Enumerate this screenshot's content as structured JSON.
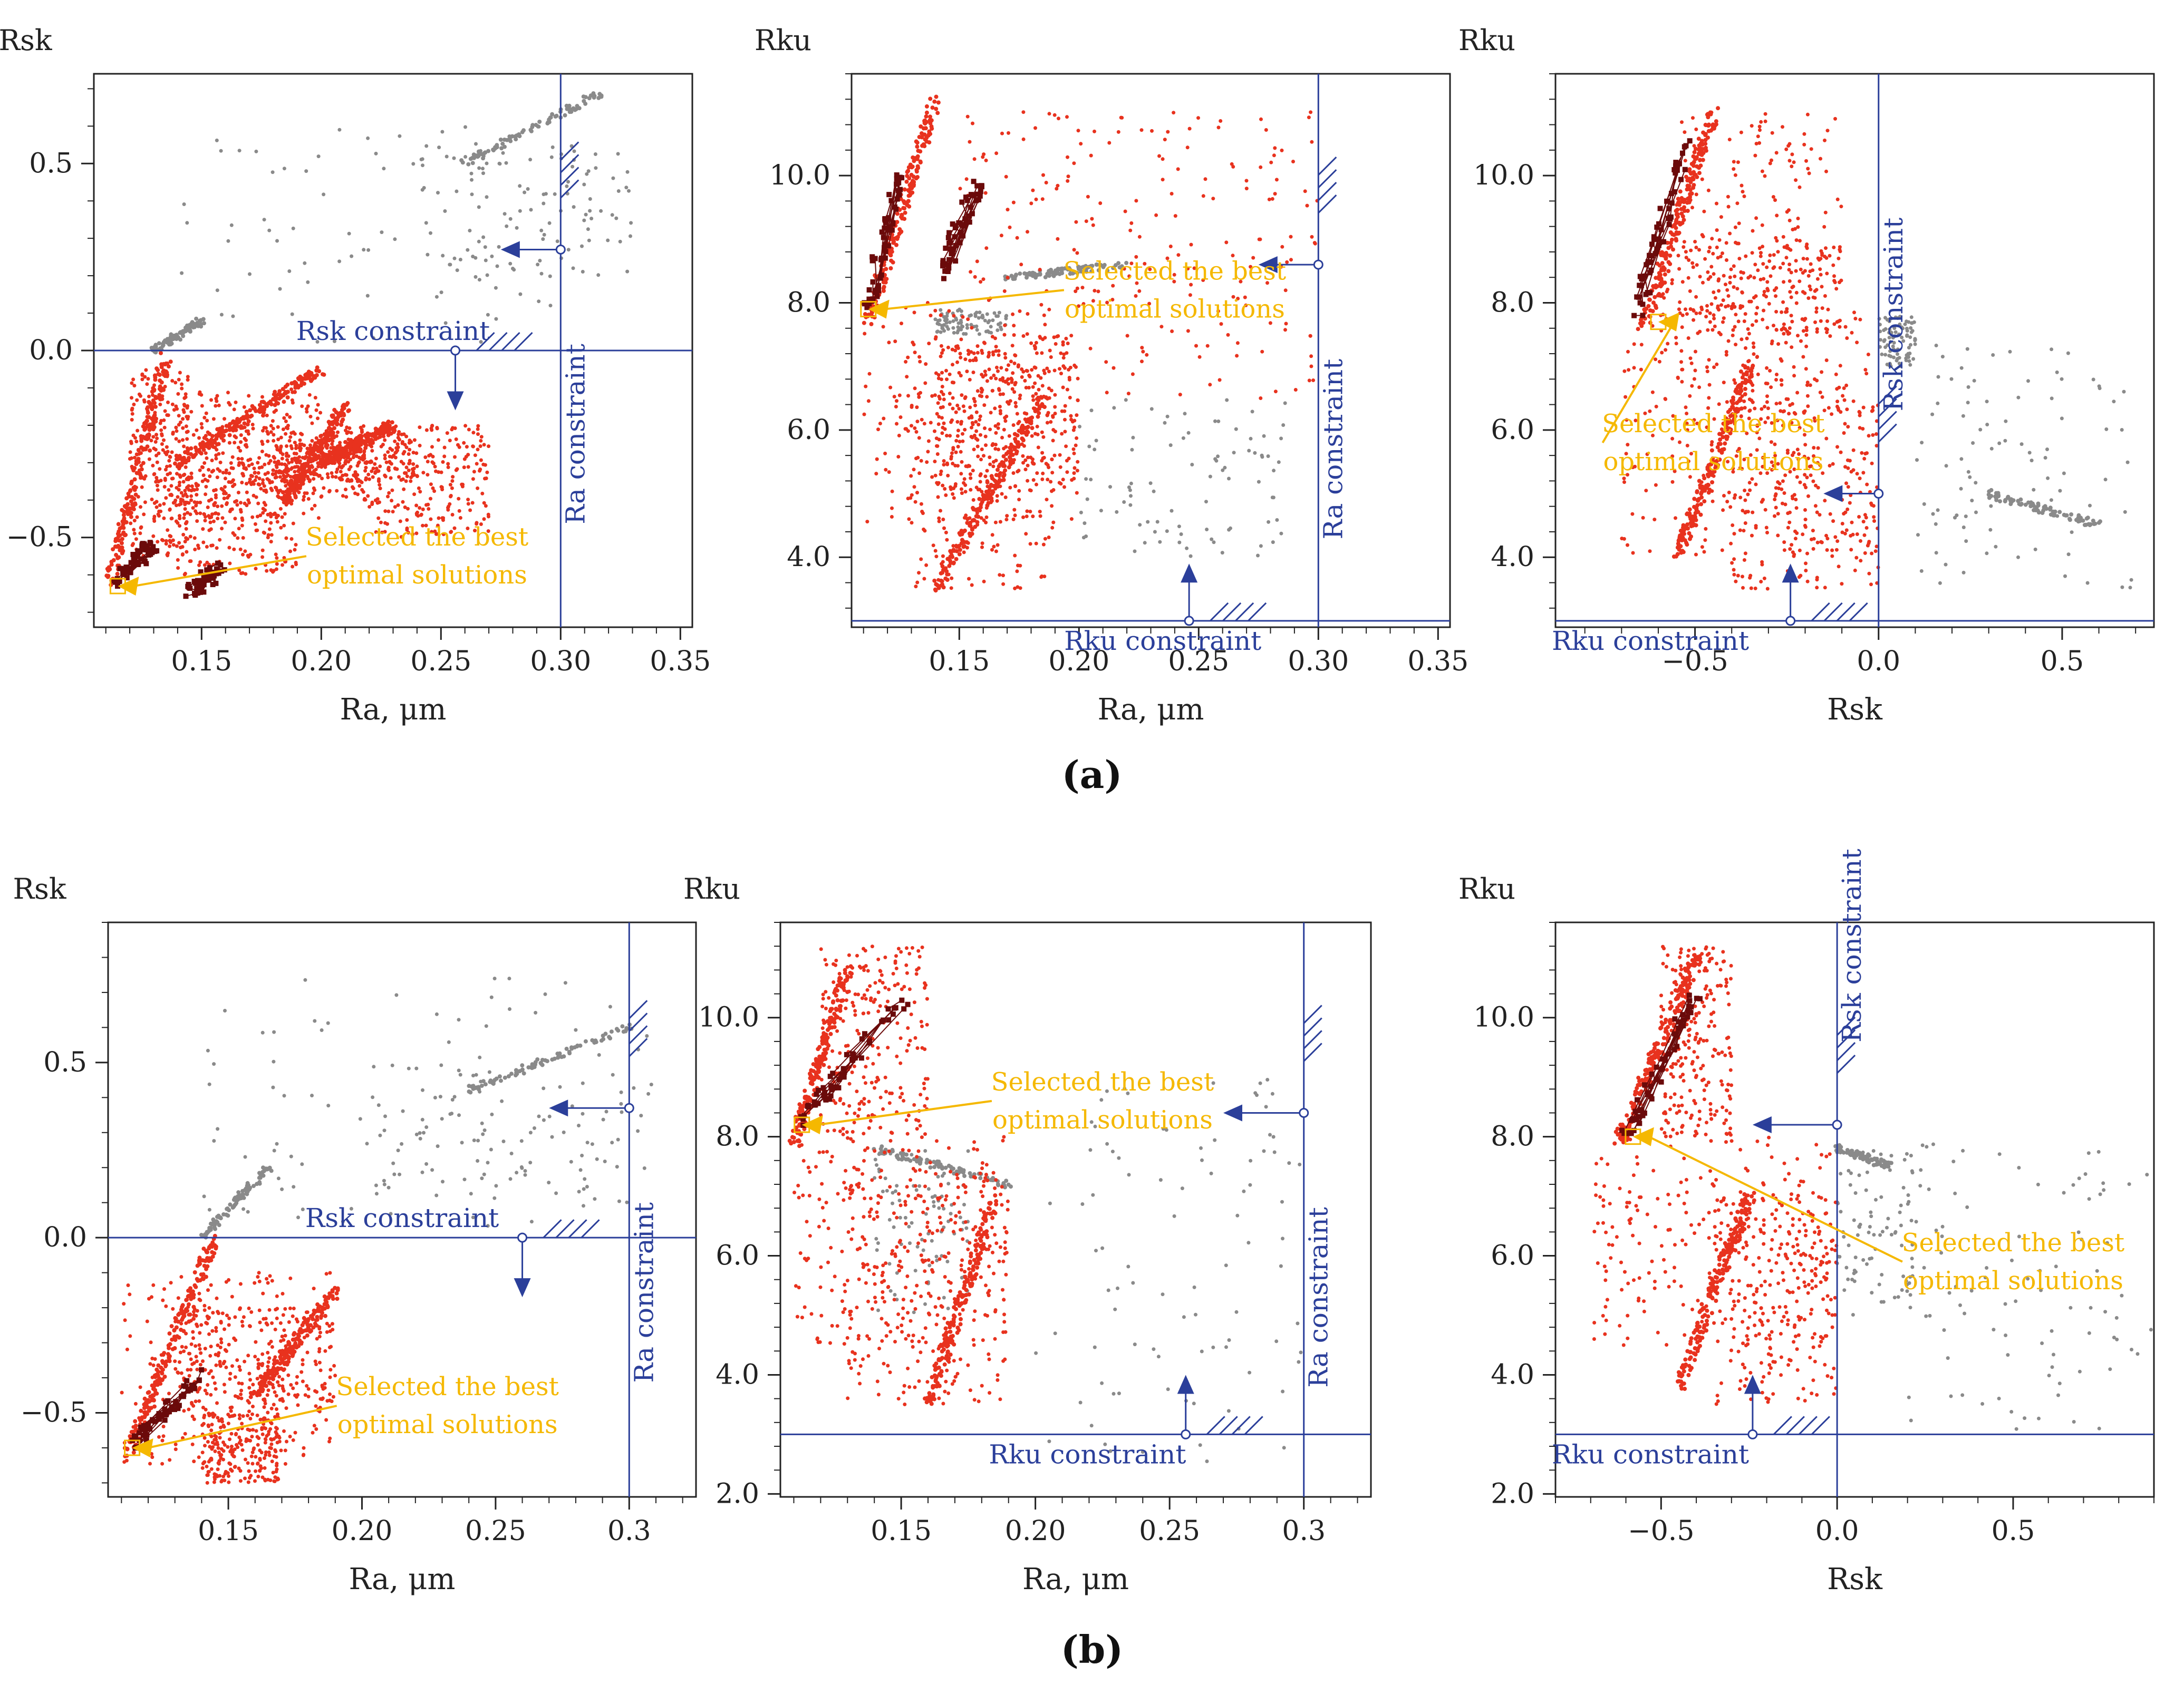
{
  "figure": {
    "panel_labels": [
      "(a)",
      "(b)"
    ]
  },
  "colors": {
    "constraint": "#2B3F9A",
    "constraint_text": "#2B3F9A",
    "feasible": "#E8321E",
    "infeasible": "#8A8A8A",
    "pareto": "#6B0A0A",
    "annotation": "#F5B800",
    "axis": "#222222"
  },
  "chart_data": [
    {
      "id": "a1",
      "type": "scatter",
      "row": "(a)",
      "ylabel": "Rsk",
      "xlabel": "Ra, μm",
      "xlim": [
        0.105,
        0.355
      ],
      "ylim": [
        -0.74,
        0.74
      ],
      "xticks": [
        0.15,
        0.2,
        0.25,
        0.3,
        0.35
      ],
      "xtick_labels": [
        "0.15",
        "0.20",
        "0.25",
        "0.30",
        "0.35"
      ],
      "yticks": [
        -0.5,
        0.0,
        0.5
      ],
      "ytick_labels": [
        "−0.5",
        "0.0",
        "0.5"
      ],
      "constraints": [
        {
          "axis": "x",
          "value": 0.3,
          "label": "Ra constraint",
          "marker_y": 0.27,
          "arrow_to": 0.275
        },
        {
          "axis": "y",
          "value": 0.0,
          "label": "Rsk constraint",
          "marker_x": 0.256,
          "arrow_to": -0.16
        }
      ],
      "annotation": {
        "line1": "Selected the best",
        "line2": "optimal solutions",
        "target": [
          0.115,
          -0.63
        ],
        "text_at": [
          0.24,
          -0.55
        ]
      },
      "series": {
        "feasible": [
          [
            0.12,
            -0.55,
            0.145,
            -0.05
          ],
          [
            0.13,
            -0.45,
            0.2,
            -0.1
          ],
          [
            0.14,
            -0.6,
            0.19,
            -0.3
          ],
          [
            0.15,
            -0.4,
            0.22,
            -0.2
          ],
          [
            0.18,
            -0.35,
            0.24,
            -0.25
          ],
          [
            0.22,
            -0.5,
            0.27,
            -0.2
          ]
        ],
        "feasible_arcs": [
          [
            0.112,
            -0.62,
            0.135,
            -0.02
          ],
          [
            0.14,
            -0.3,
            0.2,
            -0.05
          ],
          [
            0.185,
            -0.4,
            0.21,
            -0.15
          ],
          [
            0.2,
            -0.3,
            0.23,
            -0.2
          ]
        ],
        "infeasible": [
          [
            0.14,
            0.02,
            0.33,
            0.6
          ],
          [
            0.24,
            0.2,
            0.33,
            0.55
          ]
        ],
        "infeasible_arcs": [
          [
            0.13,
            0.0,
            0.15,
            0.08
          ],
          [
            0.26,
            0.5,
            0.32,
            0.7
          ]
        ],
        "pareto": [
          [
            0.112,
            -0.63,
            0.13,
            -0.52
          ],
          [
            0.145,
            -0.65,
            0.158,
            -0.58
          ]
        ]
      }
    },
    {
      "id": "a2",
      "type": "scatter",
      "row": "(a)",
      "ylabel": "Rku",
      "xlabel": "Ra, μm",
      "xlim": [
        0.105,
        0.355
      ],
      "ylim": [
        2.9,
        11.6
      ],
      "xticks": [
        0.15,
        0.2,
        0.25,
        0.3,
        0.35
      ],
      "xtick_labels": [
        "0.15",
        "0.20",
        "0.25",
        "0.30",
        "0.35"
      ],
      "yticks": [
        4.0,
        6.0,
        8.0,
        10.0
      ],
      "ytick_labels": [
        "4.0",
        "6.0",
        "8.0",
        "10.0"
      ],
      "constraints": [
        {
          "axis": "x",
          "value": 0.3,
          "label": "Ra constraint",
          "marker_y": 8.6,
          "arrow_to": 0.275
        },
        {
          "axis": "y",
          "value": 3.0,
          "label": "Rku constraint",
          "marker_x": 0.246,
          "arrow_to": 3.9
        }
      ],
      "annotation": {
        "line1": "Selected the best",
        "line2": "optimal solutions",
        "target": [
          0.112,
          7.9
        ],
        "text_at": [
          0.24,
          8.2
        ]
      },
      "series": {
        "feasible": [
          [
            0.11,
            4.5,
            0.2,
            8.0
          ],
          [
            0.13,
            3.5,
            0.19,
            7.0
          ],
          [
            0.15,
            6.5,
            0.3,
            11.0
          ],
          [
            0.14,
            5.0,
            0.2,
            7.5
          ]
        ],
        "feasible_arcs": [
          [
            0.112,
            7.7,
            0.14,
            11.2
          ],
          [
            0.14,
            3.5,
            0.185,
            6.5
          ]
        ],
        "infeasible": [
          [
            0.14,
            7.5,
            0.17,
            7.9
          ],
          [
            0.2,
            4.0,
            0.29,
            6.5
          ]
        ],
        "infeasible_arcs": [
          [
            0.17,
            8.4,
            0.22,
            8.6
          ]
        ],
        "pareto": [
          [
            0.112,
            7.9,
            0.125,
            10.0
          ],
          [
            0.142,
            8.4,
            0.158,
            9.9
          ]
        ]
      }
    },
    {
      "id": "a3",
      "type": "scatter",
      "row": "(a)",
      "ylabel": "Rku",
      "xlabel": "Rsk",
      "xlim": [
        -0.88,
        0.75
      ],
      "ylim": [
        2.9,
        11.6
      ],
      "xticks": [
        -0.5,
        0.0,
        0.5
      ],
      "xtick_labels": [
        "−0.5",
        "0.0",
        "0.5"
      ],
      "yticks": [
        4.0,
        6.0,
        8.0,
        10.0
      ],
      "ytick_labels": [
        "4.0",
        "6.0",
        "8.0",
        "10.0"
      ],
      "constraints": [
        {
          "axis": "x",
          "value": 0.0,
          "label": "Rsk constraint",
          "marker_y": 5.0,
          "arrow_to": -0.15
        },
        {
          "axis": "y",
          "value": 3.0,
          "label": "Rku constraint",
          "marker_x": -0.24,
          "arrow_to": 3.9
        }
      ],
      "annotation": {
        "line1": "Selected the best",
        "line2": "optimal solutions",
        "target": [
          -0.6,
          7.7
        ],
        "text_at": [
          -0.45,
          5.8
        ]
      },
      "series": {
        "feasible": [
          [
            -0.7,
            4.0,
            0.0,
            8.0
          ],
          [
            -0.55,
            6.0,
            -0.1,
            11.0
          ],
          [
            -0.4,
            3.5,
            0.0,
            6.5
          ],
          [
            -0.6,
            7.5,
            -0.1,
            9.0
          ]
        ],
        "feasible_arcs": [
          [
            -0.64,
            7.6,
            -0.45,
            11.0
          ],
          [
            -0.55,
            4.0,
            -0.35,
            7.0
          ]
        ],
        "infeasible": [
          [
            0.0,
            7.0,
            0.1,
            7.8
          ],
          [
            0.1,
            3.5,
            0.7,
            7.5
          ]
        ],
        "infeasible_arcs": [
          [
            0.3,
            5.0,
            0.6,
            4.5
          ]
        ],
        "pareto": [
          [
            -0.66,
            7.8,
            -0.52,
            10.5
          ]
        ]
      }
    },
    {
      "id": "b1",
      "type": "scatter",
      "row": "(b)",
      "ylabel": "Rsk",
      "xlabel": "Ra, μm",
      "xlim": [
        0.105,
        0.325
      ],
      "ylim": [
        -0.74,
        0.9
      ],
      "xticks": [
        0.15,
        0.2,
        0.25,
        0.3
      ],
      "xtick_labels": [
        "0.15",
        "0.20",
        "0.25",
        "0.3"
      ],
      "yticks": [
        -0.5,
        0.0,
        0.5
      ],
      "ytick_labels": [
        "−0.5",
        "0.0",
        "0.5"
      ],
      "constraints": [
        {
          "axis": "x",
          "value": 0.3,
          "label": "Ra constraint",
          "marker_y": 0.37,
          "arrow_to": 0.27
        },
        {
          "axis": "y",
          "value": 0.0,
          "label": "Rsk constraint",
          "marker_x": 0.26,
          "arrow_to": -0.17
        }
      ],
      "annotation": {
        "line1": "Selected the best",
        "line2": "optimal solutions",
        "target": [
          0.114,
          -0.6
        ],
        "text_at": [
          0.232,
          -0.48
        ]
      },
      "series": {
        "feasible": [
          [
            0.11,
            -0.65,
            0.19,
            -0.1
          ],
          [
            0.13,
            -0.5,
            0.19,
            -0.2
          ],
          [
            0.14,
            -0.7,
            0.17,
            -0.5
          ]
        ],
        "feasible_arcs": [
          [
            0.112,
            -0.63,
            0.145,
            0.0
          ],
          [
            0.16,
            -0.45,
            0.19,
            -0.15
          ]
        ],
        "infeasible": [
          [
            0.14,
            0.02,
            0.31,
            0.75
          ],
          [
            0.2,
            0.1,
            0.3,
            0.5
          ]
        ],
        "infeasible_arcs": [
          [
            0.14,
            0.0,
            0.165,
            0.2
          ],
          [
            0.24,
            0.42,
            0.3,
            0.6
          ]
        ],
        "pareto": [
          [
            0.112,
            -0.6,
            0.142,
            -0.38
          ]
        ]
      }
    },
    {
      "id": "b2",
      "type": "scatter",
      "row": "(b)",
      "ylabel": "Rku",
      "xlabel": "Ra, μm",
      "xlim": [
        0.105,
        0.325
      ],
      "ylim": [
        1.95,
        11.6
      ],
      "xticks": [
        0.15,
        0.2,
        0.25,
        0.3
      ],
      "xtick_labels": [
        "0.15",
        "0.20",
        "0.25",
        "0.3"
      ],
      "yticks": [
        2.0,
        4.0,
        6.0,
        8.0,
        10.0
      ],
      "ytick_labels": [
        "2.0",
        "4.0",
        "6.0",
        "8.0",
        "10.0"
      ],
      "constraints": [
        {
          "axis": "x",
          "value": 0.3,
          "label": "Ra constraint",
          "marker_y": 8.4,
          "arrow_to": 0.27
        },
        {
          "axis": "y",
          "value": 3.0,
          "label": "Rku constraint",
          "marker_x": 0.256,
          "arrow_to": 4.0
        }
      ],
      "annotation": {
        "line1": "Selected the best",
        "line2": "optimal solutions",
        "target": [
          0.113,
          8.2
        ],
        "text_at": [
          0.225,
          8.6
        ]
      },
      "series": {
        "feasible": [
          [
            0.11,
            4.5,
            0.19,
            8.0
          ],
          [
            0.12,
            8.0,
            0.16,
            11.2
          ],
          [
            0.13,
            3.5,
            0.19,
            7.5
          ]
        ],
        "feasible_arcs": [
          [
            0.11,
            7.9,
            0.13,
            10.8
          ],
          [
            0.16,
            3.5,
            0.185,
            7.0
          ]
        ],
        "infeasible": [
          [
            0.14,
            5.0,
            0.175,
            7.8
          ],
          [
            0.2,
            2.4,
            0.3,
            9.0
          ]
        ],
        "infeasible_arcs": [
          [
            0.14,
            7.8,
            0.19,
            7.2
          ]
        ],
        "pareto": [
          [
            0.112,
            8.2,
            0.15,
            10.3
          ]
        ]
      }
    },
    {
      "id": "b3",
      "type": "scatter",
      "row": "(b)",
      "ylabel": "Rku",
      "xlabel": "Rsk",
      "xlim": [
        -0.8,
        0.9
      ],
      "ylim": [
        1.95,
        11.6
      ],
      "xticks": [
        -0.5,
        0.0,
        0.5
      ],
      "xtick_labels": [
        "−0.5",
        "0.0",
        "0.5"
      ],
      "yticks": [
        2.0,
        4.0,
        6.0,
        8.0,
        10.0
      ],
      "ytick_labels": [
        "2.0",
        "4.0",
        "6.0",
        "8.0",
        "10.0"
      ],
      "constraints": [
        {
          "axis": "x",
          "value": 0.0,
          "label": "Rsk constraint",
          "marker_y": 8.2,
          "arrow_to": -0.24
        },
        {
          "axis": "y",
          "value": 3.0,
          "label": "Rku constraint",
          "marker_x": -0.24,
          "arrow_to": 4.0
        }
      ],
      "annotation": {
        "line1": "Selected the best",
        "line2": "optimal solutions",
        "target": [
          -0.58,
          8.0
        ],
        "text_at": [
          0.5,
          5.9
        ]
      },
      "series": {
        "feasible": [
          [
            -0.7,
            4.5,
            0.0,
            8.0
          ],
          [
            -0.5,
            8.0,
            -0.3,
            11.2
          ],
          [
            -0.35,
            3.5,
            0.0,
            7.0
          ]
        ],
        "feasible_arcs": [
          [
            -0.62,
            7.9,
            -0.4,
            11.0
          ],
          [
            -0.45,
            3.8,
            -0.25,
            7.0
          ]
        ],
        "infeasible": [
          [
            0.0,
            5.0,
            0.22,
            7.8
          ],
          [
            0.2,
            3.0,
            0.9,
            8.0
          ]
        ],
        "infeasible_arcs": [
          [
            0.0,
            7.8,
            0.15,
            7.5
          ]
        ],
        "pareto": [
          [
            -0.6,
            8.0,
            -0.4,
            10.4
          ]
        ]
      }
    }
  ]
}
